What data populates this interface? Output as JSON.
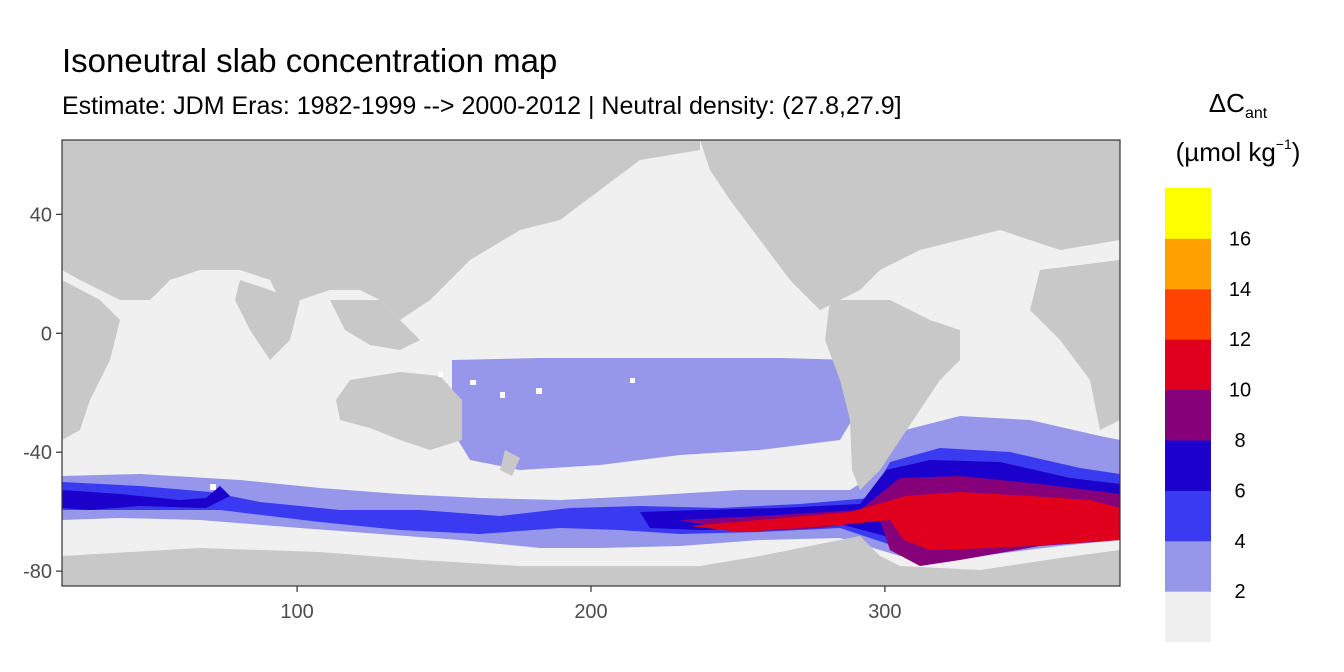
{
  "title": "Isoneutral slab concentration map",
  "subtitle": "Estimate: JDM Eras: 1982-1999 --> 2000-2012 | Neutral density: (27.8,27.9]",
  "legend": {
    "symbol": "ΔC",
    "symbol_sub": "ant",
    "unit_open": "(µmol kg",
    "unit_sup": "−1",
    "unit_close": ")",
    "bins": [
      {
        "color": "#f0f0f0"
      },
      {
        "color": "#9696ea"
      },
      {
        "color": "#3a3af0"
      },
      {
        "color": "#1c00cc"
      },
      {
        "color": "#86007a"
      },
      {
        "color": "#e0001e"
      },
      {
        "color": "#ff4400"
      },
      {
        "color": "#ff9f00"
      },
      {
        "color": "#ffff00"
      }
    ],
    "breaks": [
      "2",
      "4",
      "6",
      "8",
      "10",
      "12",
      "14",
      "16"
    ]
  },
  "axes": {
    "x_ticks": [
      "100",
      "200",
      "300"
    ],
    "y_ticks": [
      "40",
      "0",
      "-40",
      "-80"
    ],
    "xlim": [
      20,
      380
    ],
    "ylim": [
      -85,
      65
    ]
  },
  "colors": {
    "land": "#c8c8c8",
    "background": "#ffffff",
    "panel_border": "#333333"
  }
}
